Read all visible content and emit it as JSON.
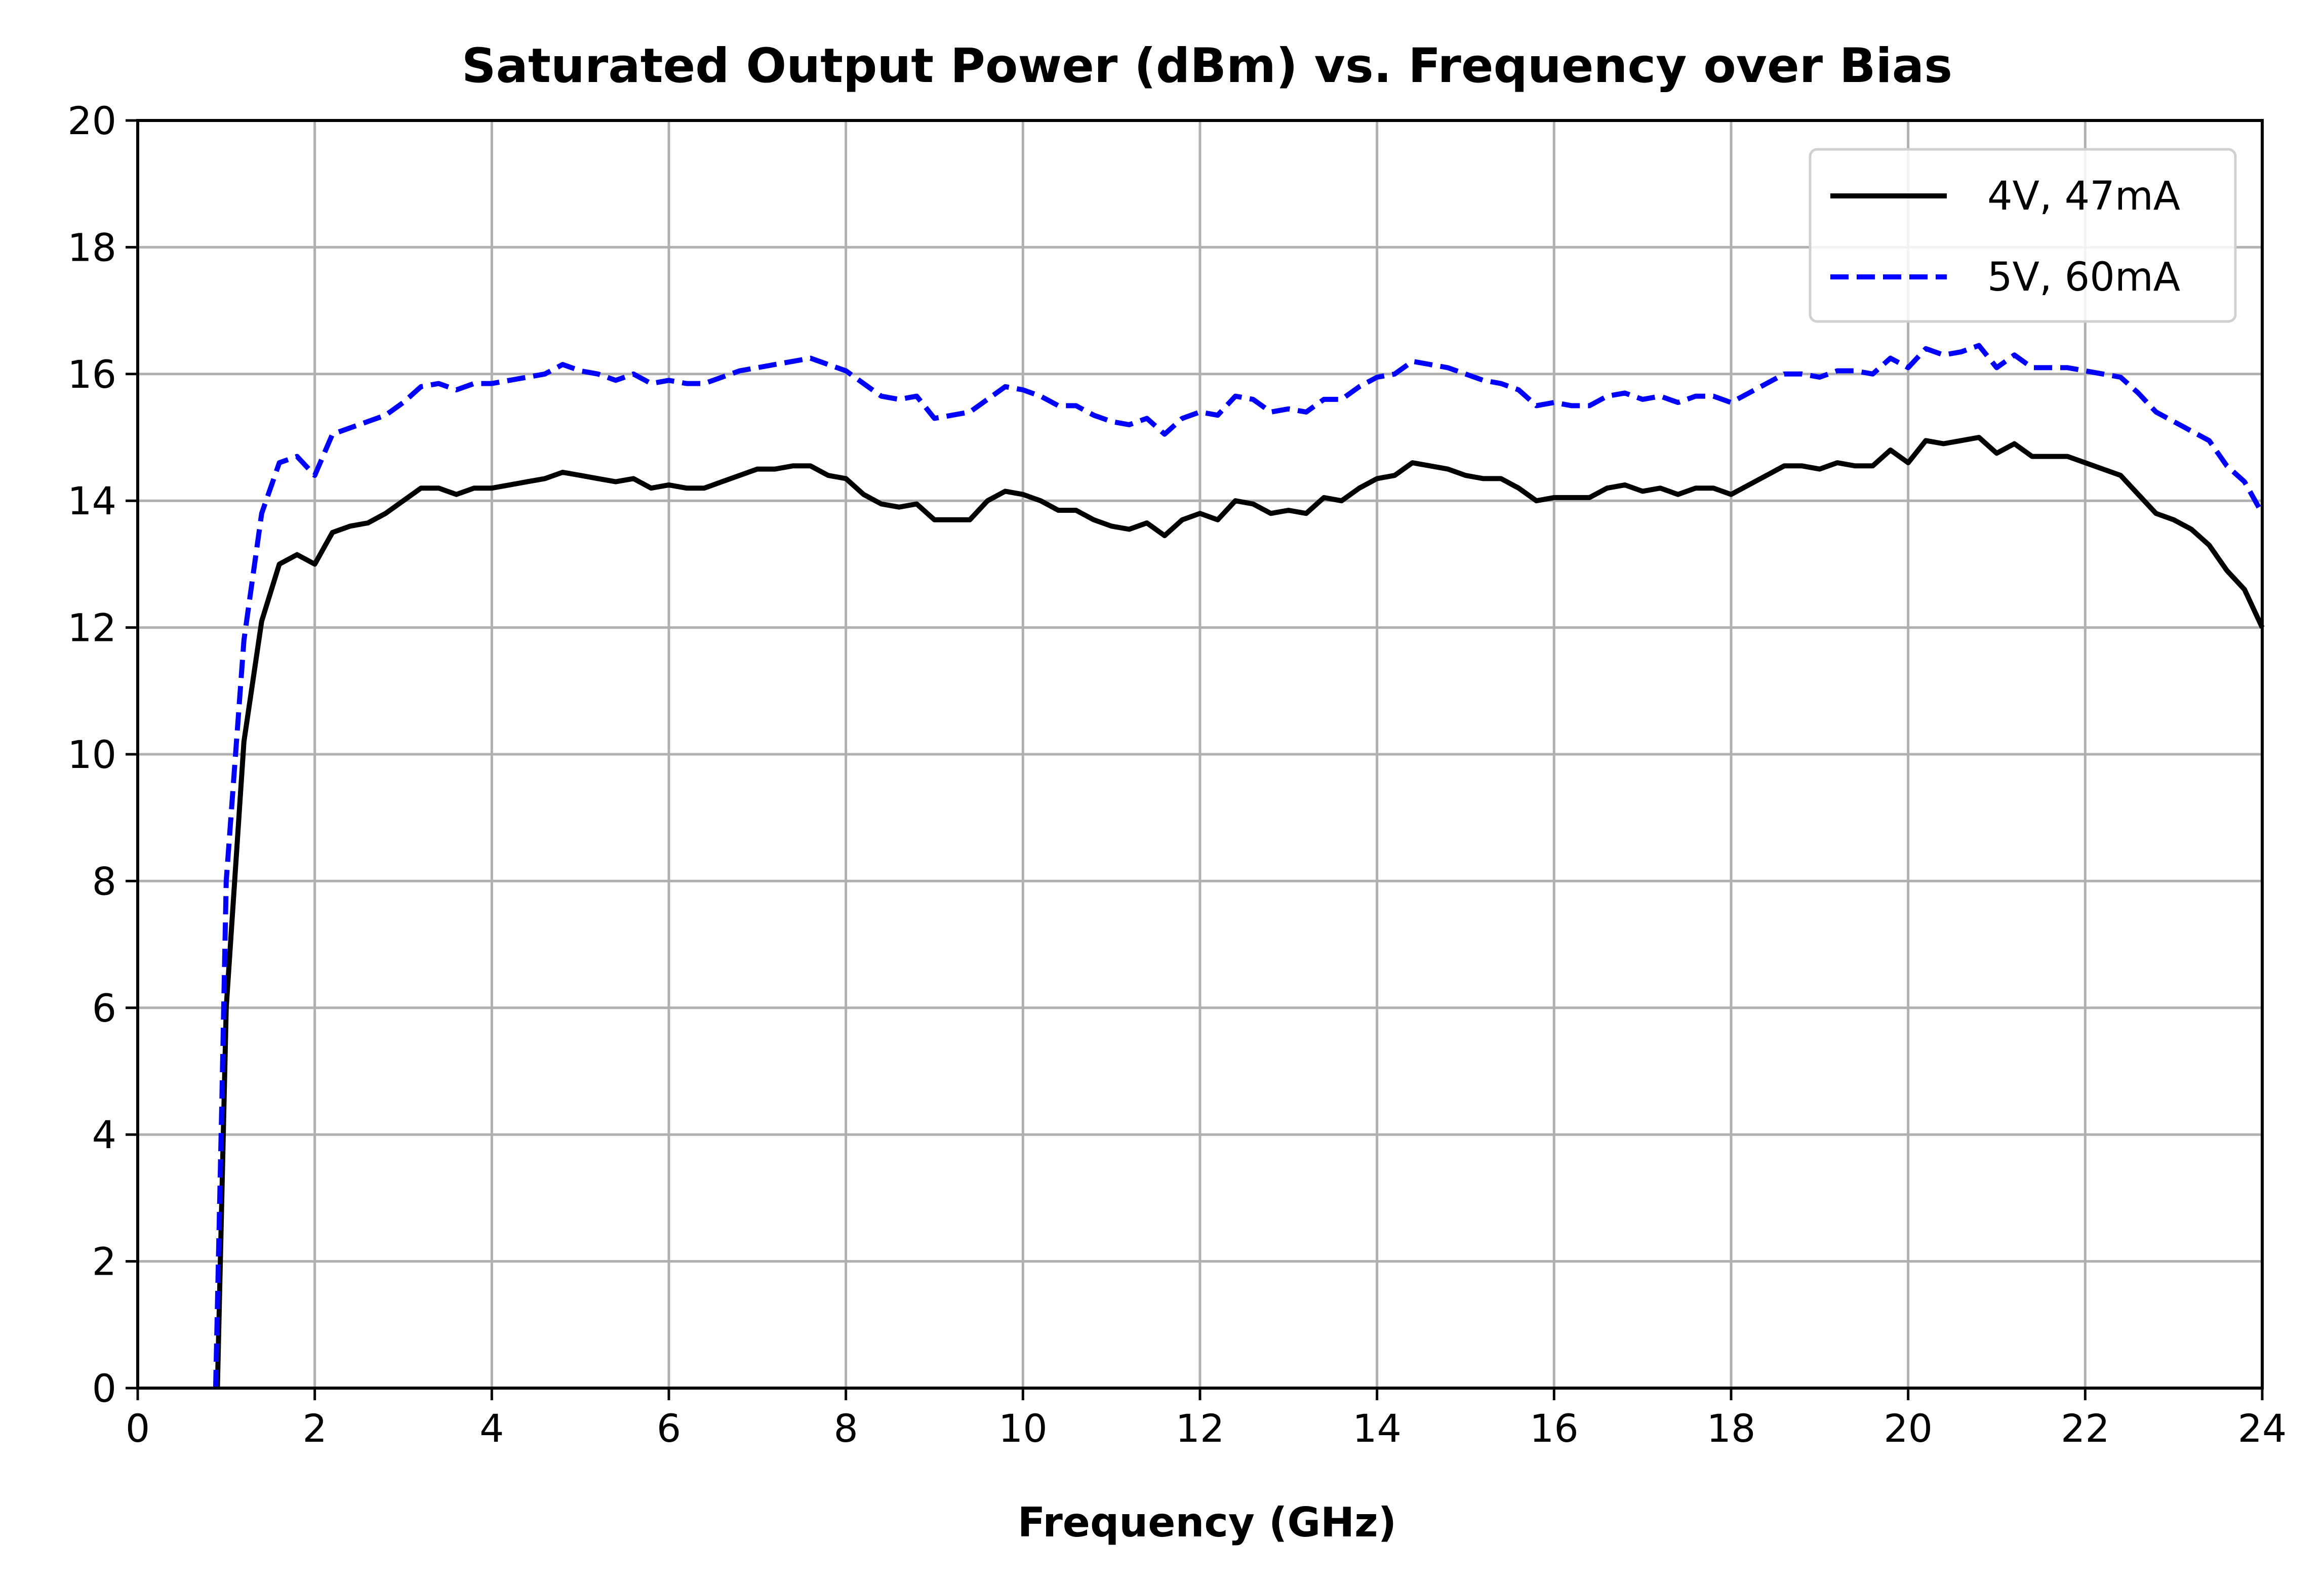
{
  "chart_data": {
    "type": "line",
    "title": "Saturated Output Power (dBm) vs. Frequency over Bias",
    "xlabel": "Frequency (GHz)",
    "ylabel": "",
    "xlim": [
      0,
      24
    ],
    "ylim": [
      0,
      20
    ],
    "xticks": [
      "0",
      "2",
      "4",
      "6",
      "8",
      "10",
      "12",
      "14",
      "16",
      "18",
      "20",
      "22",
      "24"
    ],
    "yticks": [
      "0",
      "2",
      "4",
      "6",
      "8",
      "10",
      "12",
      "14",
      "16",
      "18",
      "20"
    ],
    "grid": true,
    "legend_position": "top-right",
    "series": [
      {
        "name": "4V, 47mA",
        "color": "#000000",
        "dash": "solid",
        "x": [
          0.9,
          0.95,
          1.0,
          1.2,
          1.4,
          1.6,
          1.8,
          2.0,
          2.2,
          2.4,
          2.6,
          2.8,
          3.0,
          3.2,
          3.4,
          3.6,
          3.8,
          4.0,
          4.2,
          4.4,
          4.6,
          4.8,
          5.0,
          5.2,
          5.4,
          5.6,
          5.8,
          6.0,
          6.2,
          6.4,
          6.6,
          6.8,
          7.0,
          7.2,
          7.4,
          7.6,
          7.8,
          8.0,
          8.2,
          8.4,
          8.6,
          8.8,
          9.0,
          9.2,
          9.4,
          9.6,
          9.8,
          10.0,
          10.2,
          10.4,
          10.6,
          10.8,
          11.0,
          11.2,
          11.4,
          11.6,
          11.8,
          12.0,
          12.2,
          12.4,
          12.6,
          12.8,
          13.0,
          13.2,
          13.4,
          13.6,
          13.8,
          14.0,
          14.2,
          14.4,
          14.6,
          14.8,
          15.0,
          15.2,
          15.4,
          15.6,
          15.8,
          16.0,
          16.2,
          16.4,
          16.6,
          16.8,
          17.0,
          17.2,
          17.4,
          17.6,
          17.8,
          18.0,
          18.2,
          18.4,
          18.6,
          18.8,
          19.0,
          19.2,
          19.4,
          19.6,
          19.8,
          20.0,
          20.2,
          20.4,
          20.6,
          20.8,
          21.0,
          21.2,
          21.4,
          21.6,
          21.8,
          22.0,
          22.2,
          22.4,
          22.6,
          22.8,
          23.0,
          23.2,
          23.4,
          23.6,
          23.8,
          24.0
        ],
        "values": [
          0.0,
          3.0,
          6.0,
          10.2,
          12.1,
          13.0,
          13.15,
          13.0,
          13.5,
          13.6,
          13.65,
          13.8,
          14.0,
          14.2,
          14.2,
          14.1,
          14.2,
          14.2,
          14.25,
          14.3,
          14.35,
          14.45,
          14.4,
          14.35,
          14.3,
          14.35,
          14.2,
          14.25,
          14.2,
          14.2,
          14.3,
          14.4,
          14.5,
          14.5,
          14.55,
          14.55,
          14.4,
          14.35,
          14.1,
          13.95,
          13.9,
          13.95,
          13.7,
          13.7,
          13.7,
          14.0,
          14.15,
          14.1,
          14.0,
          13.85,
          13.85,
          13.7,
          13.6,
          13.55,
          13.65,
          13.45,
          13.7,
          13.8,
          13.7,
          14.0,
          13.95,
          13.8,
          13.85,
          13.8,
          14.05,
          14.0,
          14.2,
          14.35,
          14.4,
          14.6,
          14.55,
          14.5,
          14.4,
          14.35,
          14.35,
          14.2,
          14.0,
          14.05,
          14.05,
          14.05,
          14.2,
          14.25,
          14.15,
          14.2,
          14.1,
          14.2,
          14.2,
          14.1,
          14.25,
          14.4,
          14.55,
          14.55,
          14.5,
          14.6,
          14.55,
          14.55,
          14.8,
          14.6,
          14.95,
          14.9,
          14.95,
          15.0,
          14.75,
          14.9,
          14.7,
          14.7,
          14.7,
          14.6,
          14.5,
          14.4,
          14.1,
          13.8,
          13.7,
          13.55,
          13.3,
          12.9,
          12.6,
          12.0
        ]
      },
      {
        "name": "5V, 60mA",
        "color": "#0000ff",
        "dash": "dashed",
        "x": [
          0.88,
          0.95,
          1.0,
          1.2,
          1.4,
          1.6,
          1.8,
          2.0,
          2.2,
          2.4,
          2.6,
          2.8,
          3.0,
          3.2,
          3.4,
          3.6,
          3.8,
          4.0,
          4.2,
          4.4,
          4.6,
          4.8,
          5.0,
          5.2,
          5.4,
          5.6,
          5.8,
          6.0,
          6.2,
          6.4,
          6.6,
          6.8,
          7.0,
          7.2,
          7.4,
          7.6,
          7.8,
          8.0,
          8.2,
          8.4,
          8.6,
          8.8,
          9.0,
          9.2,
          9.4,
          9.6,
          9.8,
          10.0,
          10.2,
          10.4,
          10.6,
          10.8,
          11.0,
          11.2,
          11.4,
          11.6,
          11.8,
          12.0,
          12.2,
          12.4,
          12.6,
          12.8,
          13.0,
          13.2,
          13.4,
          13.6,
          13.8,
          14.0,
          14.2,
          14.4,
          14.6,
          14.8,
          15.0,
          15.2,
          15.4,
          15.6,
          15.8,
          16.0,
          16.2,
          16.4,
          16.6,
          16.8,
          17.0,
          17.2,
          17.4,
          17.6,
          17.8,
          18.0,
          18.2,
          18.4,
          18.6,
          18.8,
          19.0,
          19.2,
          19.4,
          19.6,
          19.8,
          20.0,
          20.2,
          20.4,
          20.6,
          20.8,
          21.0,
          21.2,
          21.4,
          21.6,
          21.8,
          22.0,
          22.2,
          22.4,
          22.6,
          22.8,
          23.0,
          23.2,
          23.4,
          23.6,
          23.8,
          24.0
        ],
        "values": [
          0.0,
          4.5,
          8.0,
          11.8,
          13.8,
          14.6,
          14.7,
          14.4,
          15.05,
          15.15,
          15.25,
          15.35,
          15.55,
          15.8,
          15.85,
          15.75,
          15.85,
          15.85,
          15.9,
          15.95,
          16.0,
          16.15,
          16.05,
          16.0,
          15.9,
          16.0,
          15.85,
          15.9,
          15.85,
          15.85,
          15.95,
          16.05,
          16.1,
          16.15,
          16.2,
          16.25,
          16.15,
          16.05,
          15.85,
          15.65,
          15.6,
          15.65,
          15.3,
          15.35,
          15.4,
          15.6,
          15.8,
          15.75,
          15.65,
          15.5,
          15.5,
          15.35,
          15.25,
          15.2,
          15.3,
          15.05,
          15.3,
          15.4,
          15.35,
          15.65,
          15.6,
          15.4,
          15.45,
          15.4,
          15.6,
          15.6,
          15.8,
          15.95,
          16.0,
          16.2,
          16.15,
          16.1,
          16.0,
          15.9,
          15.85,
          15.75,
          15.5,
          15.55,
          15.5,
          15.5,
          15.65,
          15.7,
          15.6,
          15.65,
          15.55,
          15.65,
          15.65,
          15.55,
          15.7,
          15.85,
          16.0,
          16.0,
          15.95,
          16.05,
          16.05,
          16.0,
          16.25,
          16.1,
          16.4,
          16.3,
          16.35,
          16.45,
          16.1,
          16.3,
          16.1,
          16.1,
          16.1,
          16.05,
          16.0,
          15.95,
          15.7,
          15.4,
          15.25,
          15.1,
          14.95,
          14.55,
          14.3,
          13.8
        ]
      }
    ]
  }
}
